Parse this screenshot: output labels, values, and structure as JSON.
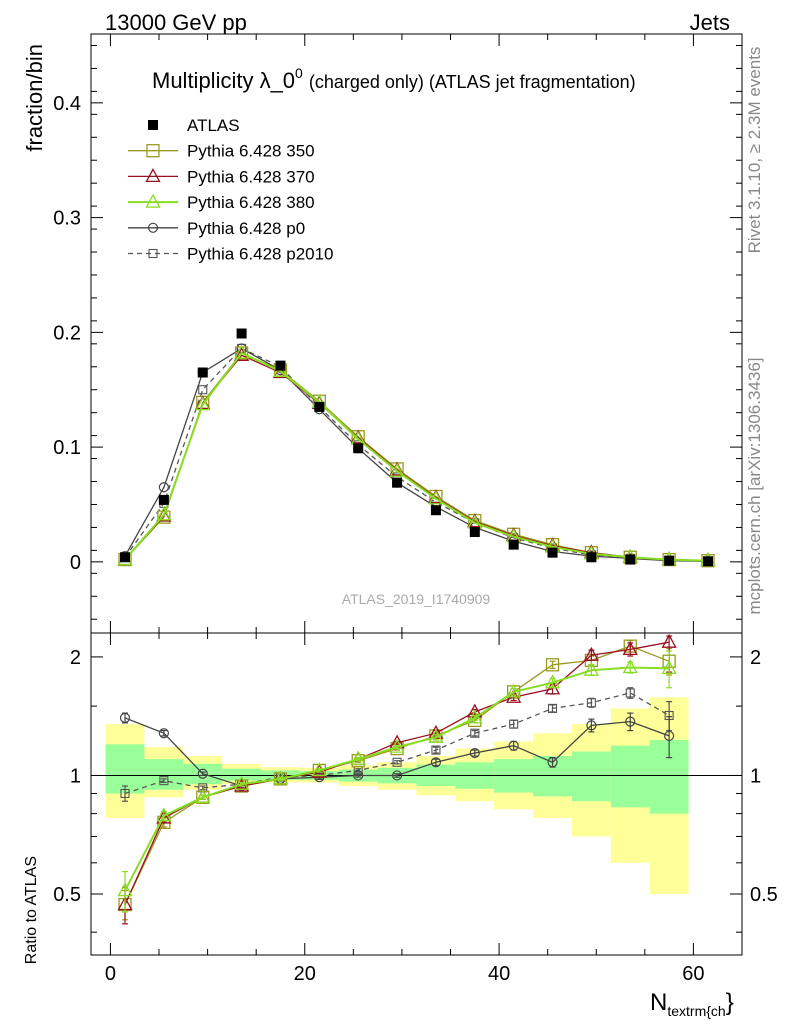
{
  "header": {
    "left": "13000 GeV pp",
    "right": "Jets"
  },
  "side_labels": {
    "top": "Rivet 3.1.10, ≥ 2.3M events",
    "bottom": "mcplots.cern.ch [arXiv:1306.3436]"
  },
  "chart_data": [
    {
      "type": "line",
      "title": "Multiplicity λ_0⁰ (charged only) (ATLAS jet fragmentation)",
      "title_main": "Multiplicity λ_0",
      "title_sup": "0",
      "title_rest": "(charged only) (ATLAS jet fragmentation)",
      "ylabel": "fraction/bin",
      "watermark": "ATLAS_2019_I1740909",
      "xlim": [
        -2,
        65
      ],
      "ylim": [
        -0.062,
        0.46
      ],
      "yticks": [
        0,
        0.1,
        0.2,
        0.3,
        0.4
      ],
      "ytick_labels": [
        "0",
        "0.1",
        "0.2",
        "0.3",
        "0.4"
      ],
      "legend_placement": "top-left",
      "x": [
        1.5,
        5.5,
        9.5,
        13.5,
        17.5,
        21.5,
        25.5,
        29.5,
        33.5,
        37.5,
        41.5,
        45.5,
        49.5,
        53.5,
        57.5,
        61.5
      ],
      "series": [
        {
          "name": "ATLAS",
          "color": "#000000",
          "marker": "filled-square",
          "line": "none",
          "values": [
            0.004,
            0.054,
            0.165,
            0.199,
            0.171,
            0.135,
            0.099,
            0.069,
            0.045,
            0.026,
            0.015,
            0.008,
            0.004,
            0.002,
            0.001,
            0.0005
          ]
        },
        {
          "name": "Pythia 6.428 350",
          "color": "#9a9a20",
          "marker": "open-square",
          "line": "solid",
          "values": [
            0.002,
            0.039,
            0.139,
            0.182,
            0.167,
            0.14,
            0.109,
            0.081,
            0.057,
            0.036,
            0.024,
            0.015,
            0.008,
            0.004,
            0.002,
            0.001
          ]
        },
        {
          "name": "Pythia 6.428 370",
          "color": "#9a1020",
          "marker": "open-triangle",
          "line": "solid",
          "values": [
            0.002,
            0.04,
            0.138,
            0.18,
            0.165,
            0.138,
            0.108,
            0.08,
            0.056,
            0.035,
            0.023,
            0.014,
            0.008,
            0.004,
            0.002,
            0.001
          ]
        },
        {
          "name": "Pythia 6.428 380",
          "color": "#88dd22",
          "marker": "open-triangle",
          "line": "solid",
          "values": [
            0.002,
            0.041,
            0.137,
            0.182,
            0.166,
            0.139,
            0.107,
            0.079,
            0.055,
            0.034,
            0.022,
            0.013,
            0.007,
            0.004,
            0.002,
            0.001
          ]
        },
        {
          "name": "Pythia 6.428 p0",
          "color": "#444444",
          "marker": "open-circle",
          "line": "solid",
          "values": [
            0.005,
            0.065,
            0.165,
            0.186,
            0.167,
            0.133,
            0.099,
            0.069,
            0.048,
            0.03,
            0.018,
            0.009,
            0.005,
            0.003,
            0.001,
            0.0005
          ]
        },
        {
          "name": "Pythia 6.428 p2010",
          "color": "#555555",
          "marker": "open-square-small",
          "line": "dashed",
          "values": [
            0.004,
            0.051,
            0.15,
            0.186,
            0.17,
            0.135,
            0.102,
            0.074,
            0.052,
            0.034,
            0.021,
            0.012,
            0.006,
            0.003,
            0.0015,
            0.0007
          ]
        }
      ]
    },
    {
      "type": "line",
      "ylabel": "Ratio to ATLAS",
      "xlabel": "N_textrm{ch}",
      "xlabel_main": "N",
      "xlabel_sub": "textrm{ch",
      "xlabel_close": "}",
      "xlim": [
        -2,
        65
      ],
      "ylim": [
        0.35,
        2.3
      ],
      "xticks": [
        0,
        20,
        40,
        60
      ],
      "xtick_labels": [
        "0",
        "20",
        "40",
        "60"
      ],
      "yticks": [
        0.5,
        1,
        2
      ],
      "ytick_labels": [
        "0.5",
        "1",
        "2"
      ],
      "bands": {
        "edges": [
          -0.5,
          3.5,
          7.5,
          11.5,
          15.5,
          19.5,
          23.5,
          27.5,
          31.5,
          35.5,
          39.5,
          43.5,
          47.5,
          51.5,
          55.5,
          59.5
        ],
        "inner_lo": [
          0.9,
          0.92,
          0.95,
          0.97,
          0.975,
          0.975,
          0.965,
          0.955,
          0.94,
          0.925,
          0.905,
          0.885,
          0.86,
          0.83,
          0.8
        ],
        "inner_hi": [
          1.2,
          1.1,
          1.07,
          1.04,
          1.03,
          1.025,
          1.035,
          1.045,
          1.065,
          1.08,
          1.1,
          1.12,
          1.15,
          1.19,
          1.23
        ],
        "outer_lo": [
          0.78,
          0.88,
          0.92,
          0.95,
          0.96,
          0.96,
          0.94,
          0.92,
          0.89,
          0.86,
          0.82,
          0.78,
          0.7,
          0.6,
          0.5
        ],
        "outer_hi": [
          1.35,
          1.18,
          1.12,
          1.07,
          1.05,
          1.045,
          1.06,
          1.08,
          1.12,
          1.17,
          1.22,
          1.28,
          1.35,
          1.48,
          1.58
        ],
        "inner_color": "#99ff99",
        "outer_color": "#ffff99"
      },
      "x": [
        1.5,
        5.5,
        9.5,
        13.5,
        17.5,
        21.5,
        25.5,
        29.5,
        33.5,
        37.5,
        41.5,
        45.5,
        49.5,
        53.5,
        57.5
      ],
      "series": [
        {
          "name": "Pythia 6.428 350",
          "color": "#9a9a20",
          "marker": "open-square",
          "line": "solid",
          "values": [
            0.47,
            0.76,
            0.88,
            0.94,
            0.98,
            1.03,
            1.09,
            1.17,
            1.26,
            1.38,
            1.63,
            1.91,
            1.96,
            2.13,
            1.95
          ],
          "errors": [
            0.04,
            0.02,
            0.01,
            0.01,
            0.01,
            0.01,
            0.01,
            0.01,
            0.02,
            0.02,
            0.03,
            0.04,
            0.05,
            0.07,
            0.15
          ]
        },
        {
          "name": "Pythia 6.428 370",
          "color": "#9a1020",
          "marker": "open-triangle",
          "line": "solid",
          "values": [
            0.47,
            0.78,
            0.88,
            0.94,
            0.98,
            1.02,
            1.1,
            1.21,
            1.28,
            1.45,
            1.58,
            1.66,
            2.02,
            2.09,
            2.18
          ],
          "errors": [
            0.05,
            0.02,
            0.01,
            0.01,
            0.01,
            0.01,
            0.01,
            0.01,
            0.02,
            0.02,
            0.03,
            0.05,
            0.06,
            0.08,
            0.35
          ]
        },
        {
          "name": "Pythia 6.428 380",
          "color": "#88dd22",
          "marker": "open-triangle",
          "line": "solid",
          "values": [
            0.51,
            0.79,
            0.88,
            0.95,
            0.98,
            1.03,
            1.1,
            1.18,
            1.25,
            1.4,
            1.63,
            1.72,
            1.85,
            1.88,
            1.87
          ],
          "errors": [
            0.06,
            0.02,
            0.01,
            0.01,
            0.01,
            0.01,
            0.01,
            0.01,
            0.02,
            0.02,
            0.03,
            0.04,
            0.05,
            0.06,
            0.2
          ]
        },
        {
          "name": "Pythia 6.428 p0",
          "color": "#444444",
          "marker": "open-circle",
          "line": "solid",
          "values": [
            1.4,
            1.28,
            1.01,
            0.94,
            0.98,
            0.99,
            1.0,
            1.0,
            1.08,
            1.14,
            1.19,
            1.08,
            1.34,
            1.37,
            1.26
          ],
          "errors": [
            0.04,
            0.02,
            0.01,
            0.01,
            0.01,
            0.01,
            0.01,
            0.01,
            0.02,
            0.02,
            0.03,
            0.03,
            0.05,
            0.07,
            0.15
          ]
        },
        {
          "name": "Pythia 6.428 p2010",
          "color": "#555555",
          "marker": "open-square-small",
          "line": "dashed",
          "values": [
            0.9,
            0.97,
            0.93,
            0.95,
            0.99,
            1.0,
            1.03,
            1.08,
            1.16,
            1.28,
            1.35,
            1.48,
            1.53,
            1.62,
            1.42
          ],
          "errors": [
            0.04,
            0.01,
            0.01,
            0.01,
            0.01,
            0.01,
            0.01,
            0.01,
            0.02,
            0.02,
            0.03,
            0.03,
            0.04,
            0.05,
            0.12
          ]
        }
      ]
    }
  ]
}
